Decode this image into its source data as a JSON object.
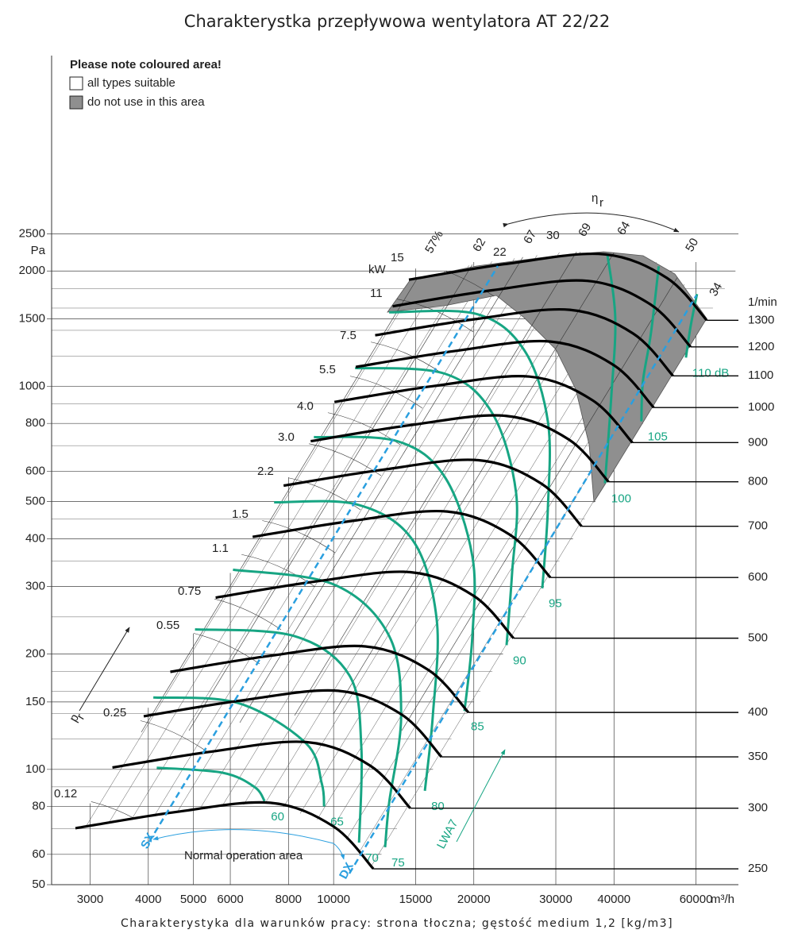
{
  "title": "Charakterystka przepływowa wentylatora AT 22/22",
  "footer": "Charakterystyka dla warunków pracy: strona tłoczna; gęstość medium 1,2 [kg/m3]",
  "legend": {
    "title": "Please note coloured area!",
    "items": [
      "all types suitable",
      "do not use in this area"
    ]
  },
  "chart_data": {
    "type": "fan_curve",
    "log_x": true,
    "log_y": true,
    "x_unit": "m³/h",
    "y_unit": "Pa",
    "rpm_unit": "1/min",
    "power_unit": "kW",
    "xlim": [
      2480,
      74000
    ],
    "ylim": [
      50,
      7300
    ],
    "xticks": [
      3000,
      4000,
      5000,
      6000,
      8000,
      10000,
      15000,
      20000,
      30000,
      40000,
      60000
    ],
    "yticks": [
      50,
      60,
      80,
      100,
      150,
      200,
      300,
      400,
      500,
      600,
      800,
      1000,
      1500,
      2000,
      2500
    ],
    "y_minor_ticks": [
      70,
      90,
      120,
      140,
      160,
      180,
      250,
      350,
      450,
      700,
      900,
      1200,
      1400,
      1600,
      1800
    ],
    "series": [
      {
        "name": "250",
        "color": "#000000",
        "x": [
          2790,
          4560,
          7310,
          10000,
          12170
        ],
        "values": [
          70.2,
          77.3,
          81.8,
          70.9,
          55
        ]
      },
      {
        "name": "300",
        "color": "#000000",
        "x": [
          3350,
          5470,
          8770,
          12000,
          14600
        ],
        "values": [
          101.1,
          111.3,
          117.8,
          102.1,
          79.2
        ]
      },
      {
        "name": "350",
        "color": "#000000",
        "x": [
          3910,
          6380,
          10230,
          14000,
          17040
        ],
        "values": [
          137.6,
          151.5,
          160.3,
          139,
          107.8
        ]
      },
      {
        "name": "400",
        "color": "#000000",
        "x": [
          4460,
          7300,
          11700,
          16000,
          19470
        ],
        "values": [
          179.7,
          197.9,
          209.4,
          181.5,
          140.8
        ]
      },
      {
        "name": "500",
        "color": "#000000",
        "x": [
          5580,
          9120,
          14620,
          20000,
          24340
        ],
        "values": [
          280.8,
          309.2,
          327.2,
          283.6,
          220
        ]
      },
      {
        "name": "600",
        "color": "#000000",
        "x": [
          6700,
          10940,
          17540,
          24000,
          29210
        ],
        "values": [
          404.4,
          445.2,
          471.2,
          408.4,
          316.8
        ]
      },
      {
        "name": "700",
        "color": "#000000",
        "x": [
          7810,
          12770,
          20470,
          28000,
          34080
        ],
        "values": [
          550.4,
          606,
          641.3,
          555.9,
          431.2
        ]
      },
      {
        "name": "800",
        "color": "#000000",
        "x": [
          8930,
          14590,
          23390,
          32000,
          38940
        ],
        "values": [
          718.8,
          791.6,
          837.6,
          726,
          563.2
        ]
      },
      {
        "name": "900",
        "color": "#000000",
        "x": [
          10040,
          16420,
          26320,
          36000,
          43810
        ],
        "values": [
          909.8,
          1001.8,
          1060.1,
          918.9,
          712.8
        ]
      },
      {
        "name": "1000",
        "color": "#000000",
        "x": [
          11160,
          18240,
          29240,
          40000,
          48680
        ],
        "values": [
          1123.2,
          1236.8,
          1308.8,
          1134.4,
          880
        ]
      },
      {
        "name": "1100",
        "color": "#000000",
        "x": [
          12280,
          20060,
          32160,
          44000,
          53550
        ],
        "values": [
          1359.1,
          1496.5,
          1583.6,
          1372.6,
          1064.8
        ]
      },
      {
        "name": "1200",
        "color": "#000000",
        "x": [
          13390,
          21890,
          35090,
          48000,
          58420
        ],
        "values": [
          1617.4,
          1781,
          1884.7,
          1633.5,
          1267.2
        ]
      },
      {
        "name": "1300",
        "color": "#000000",
        "x": [
          14510,
          23710,
          38010,
          52000,
          63280
        ],
        "values": [
          1898.2,
          2090.2,
          2211.9,
          1917.1,
          1487.2
        ]
      }
    ],
    "noise_series": [
      {
        "name": "60",
        "color": "#17a583",
        "x": [
          4170,
          5770,
          6760,
          7110
        ],
        "values": [
          101,
          98,
          90,
          82.6
        ]
      },
      {
        "name": "65",
        "color": "#17a583",
        "x": [
          4100,
          6240,
          8720,
          9430,
          9540
        ],
        "values": [
          154,
          149,
          117,
          92,
          80
        ]
      },
      {
        "name": "70",
        "color": "#17a583",
        "x": [
          5040,
          8220,
          10810,
          11470,
          11340
        ],
        "values": [
          232,
          223,
          176,
          114,
          64.4
        ]
      },
      {
        "name": "75",
        "color": "#17a583",
        "x": [
          6080,
          10000,
          13160,
          13960,
          13160,
          12900
        ],
        "values": [
          332,
          304,
          223,
          138,
          81.8,
          62.6
        ]
      },
      {
        "name": "80",
        "color": "#17a583",
        "x": [
          7450,
          11250,
          14800,
          16650,
          16330,
          15700
        ],
        "values": [
          498,
          491,
          396,
          246,
          138,
          87.9
        ]
      },
      {
        "name": "85",
        "color": "#17a583",
        "x": [
          9070,
          13690,
          17320,
          19860,
          19860,
          19100
        ],
        "values": [
          737,
          719,
          580,
          360,
          223,
          142
        ]
      },
      {
        "name": "90",
        "color": "#17a583",
        "x": [
          11120,
          17320,
          21920,
          24650,
          24170,
          23520
        ],
        "values": [
          1116,
          1079,
          850,
          527,
          327,
          211
        ]
      },
      {
        "name": "95",
        "color": "#17a583",
        "x": [
          13160,
          20260,
          25630,
          28840,
          28840,
          28060
        ],
        "values": [
          1560,
          1545,
          1246,
          810,
          479,
          297
        ]
      },
      {
        "name": "100",
        "color": "#17a583",
        "x": [
          38700,
          40260,
          39460,
          38250
        ],
        "values": [
          2210,
          1508,
          935,
          558
        ]
      },
      {
        "name": "105",
        "color": "#17a583",
        "x": [
          49900,
          48000,
          46150,
          45800
        ],
        "values": [
          2057,
          1371,
          1029,
          810
        ]
      },
      {
        "name": "110 dB",
        "color": "#17a583",
        "x": [
          60300,
          58440,
          57080
        ],
        "values": [
          1741,
          1438,
          1188
        ]
      }
    ],
    "power_labels": [
      "0.12",
      "0.25",
      "0.55",
      "0.75",
      "1.1",
      "1.5",
      "2.2",
      "3.0",
      "4.0",
      "5.5",
      "7.5",
      "11",
      "15",
      "22",
      "30",
      "34"
    ],
    "efficiency_labels": [
      "57%",
      "62",
      "67",
      "69",
      "64",
      "50"
    ],
    "annotations": {
      "efficiency_symbol": "η",
      "efficiency_sub": "r",
      "pressure_symbol": "p",
      "pressure_sub": "r",
      "noise_symbol": "LWA7",
      "normal_area": "Normal operation area",
      "sx": "SX",
      "dx": "DX"
    }
  }
}
